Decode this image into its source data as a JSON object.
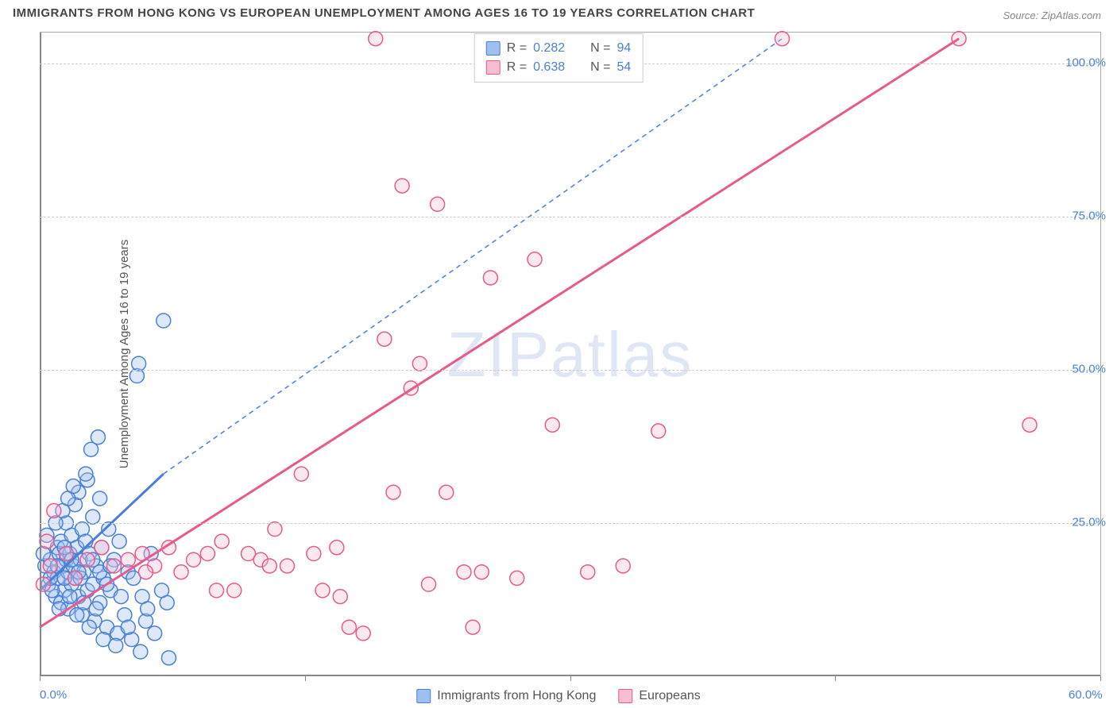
{
  "title": "IMMIGRANTS FROM HONG KONG VS EUROPEAN UNEMPLOYMENT AMONG AGES 16 TO 19 YEARS CORRELATION CHART",
  "source": "Source: ZipAtlas.com",
  "watermark": "ZIPatlas",
  "ylabel": "Unemployment Among Ages 16 to 19 years",
  "chart": {
    "type": "scatter",
    "xlim": [
      0,
      60
    ],
    "ylim": [
      0,
      105
    ],
    "xticks": [
      0,
      15,
      30,
      45,
      60
    ],
    "xtick_labels": [
      "0.0%",
      "",
      "",
      "",
      "60.0%"
    ],
    "yticks": [
      25,
      50,
      75,
      100
    ],
    "ytick_labels": [
      "25.0%",
      "50.0%",
      "75.0%",
      "100.0%"
    ],
    "background_color": "#ffffff",
    "grid_color": "#cccccc",
    "axis_color": "#888888",
    "label_color": "#4a7fd6",
    "title_fontsize": 15,
    "label_fontsize": 15,
    "watermark_fontsize": 80,
    "watermark_color": "rgba(130,160,210,0.25)",
    "marker_radius": 9,
    "marker_stroke_width": 1.5,
    "marker_fill_opacity": 0.35
  },
  "series": [
    {
      "name": "Immigrants from Hong Kong",
      "color_stroke": "#4a7fd6",
      "color_fill": "#9fbff0",
      "R": "0.282",
      "N": "94",
      "trend_solid": {
        "x1": 0,
        "y1": 14,
        "x2": 7,
        "y2": 33
      },
      "trend_dashed": {
        "x1": 7,
        "y1": 33,
        "x2": 42,
        "y2": 104
      },
      "points": [
        [
          0.3,
          18
        ],
        [
          0.5,
          15
        ],
        [
          0.6,
          19
        ],
        [
          0.8,
          17
        ],
        [
          0.9,
          13
        ],
        [
          1.0,
          21
        ],
        [
          1.0,
          16
        ],
        [
          1.1,
          20
        ],
        [
          1.2,
          12
        ],
        [
          1.2,
          22
        ],
        [
          1.3,
          18
        ],
        [
          1.4,
          14
        ],
        [
          1.5,
          19
        ],
        [
          1.5,
          25
        ],
        [
          1.6,
          11
        ],
        [
          1.6,
          17
        ],
        [
          1.7,
          20
        ],
        [
          1.8,
          23
        ],
        [
          1.8,
          15
        ],
        [
          1.9,
          18
        ],
        [
          2.0,
          28
        ],
        [
          2.0,
          16
        ],
        [
          2.1,
          21
        ],
        [
          2.2,
          13
        ],
        [
          2.2,
          30
        ],
        [
          2.3,
          19
        ],
        [
          2.4,
          10
        ],
        [
          2.4,
          24
        ],
        [
          2.5,
          17
        ],
        [
          2.6,
          22
        ],
        [
          2.7,
          14
        ],
        [
          2.7,
          32
        ],
        [
          2.8,
          20
        ],
        [
          2.9,
          37
        ],
        [
          3.0,
          15
        ],
        [
          3.0,
          26
        ],
        [
          3.1,
          9
        ],
        [
          3.2,
          18
        ],
        [
          3.3,
          39
        ],
        [
          3.4,
          12
        ],
        [
          3.4,
          29
        ],
        [
          3.5,
          21
        ],
        [
          3.6,
          16
        ],
        [
          3.8,
          8
        ],
        [
          3.9,
          24
        ],
        [
          4.0,
          14
        ],
        [
          4.2,
          19
        ],
        [
          4.4,
          7
        ],
        [
          4.5,
          22
        ],
        [
          4.8,
          10
        ],
        [
          5.0,
          17
        ],
        [
          5.2,
          6
        ],
        [
          5.5,
          49
        ],
        [
          5.6,
          51
        ],
        [
          5.8,
          13
        ],
        [
          6.0,
          9
        ],
        [
          6.3,
          20
        ],
        [
          7.0,
          58
        ],
        [
          7.2,
          12
        ],
        [
          0.4,
          23
        ],
        [
          0.7,
          14
        ],
        [
          0.9,
          25
        ],
        [
          1.1,
          11
        ],
        [
          1.3,
          27
        ],
        [
          1.4,
          16
        ],
        [
          1.6,
          29
        ],
        [
          1.7,
          13
        ],
        [
          1.9,
          31
        ],
        [
          2.1,
          10
        ],
        [
          2.3,
          16
        ],
        [
          2.5,
          12
        ],
        [
          2.6,
          33
        ],
        [
          2.8,
          8
        ],
        [
          3.0,
          19
        ],
        [
          3.2,
          11
        ],
        [
          3.4,
          17
        ],
        [
          3.6,
          6
        ],
        [
          3.8,
          15
        ],
        [
          4.0,
          18
        ],
        [
          4.3,
          5
        ],
        [
          4.6,
          13
        ],
        [
          5.0,
          8
        ],
        [
          5.3,
          16
        ],
        [
          5.7,
          4
        ],
        [
          6.1,
          11
        ],
        [
          6.5,
          7
        ],
        [
          6.9,
          14
        ],
        [
          7.3,
          3
        ],
        [
          0.2,
          20
        ],
        [
          0.6,
          16
        ],
        [
          1.0,
          18
        ],
        [
          1.4,
          21
        ],
        [
          1.8,
          19
        ],
        [
          2.2,
          17
        ]
      ]
    },
    {
      "name": "Europeans",
      "color_stroke": "#e75a8d",
      "color_fill": "#f7bdd2",
      "R": "0.638",
      "N": "54",
      "trend_solid": {
        "x1": 0,
        "y1": 8,
        "x2": 52,
        "y2": 104
      },
      "trend_dashed": null,
      "points": [
        [
          0.2,
          15
        ],
        [
          0.4,
          22
        ],
        [
          0.6,
          18
        ],
        [
          0.8,
          27
        ],
        [
          1.5,
          20
        ],
        [
          2.0,
          16
        ],
        [
          2.7,
          19
        ],
        [
          3.5,
          21
        ],
        [
          4.2,
          18
        ],
        [
          5.0,
          19
        ],
        [
          5.8,
          20
        ],
        [
          6.5,
          18
        ],
        [
          7.3,
          21
        ],
        [
          8.0,
          17
        ],
        [
          8.7,
          19
        ],
        [
          9.5,
          20
        ],
        [
          10.3,
          22
        ],
        [
          11.0,
          14
        ],
        [
          11.8,
          20
        ],
        [
          12.5,
          19
        ],
        [
          13.3,
          24
        ],
        [
          14.0,
          18
        ],
        [
          14.8,
          33
        ],
        [
          15.5,
          20
        ],
        [
          16.0,
          14
        ],
        [
          16.8,
          21
        ],
        [
          17.5,
          8
        ],
        [
          18.3,
          7
        ],
        [
          19.0,
          104
        ],
        [
          19.5,
          55
        ],
        [
          20.0,
          30
        ],
        [
          20.5,
          80
        ],
        [
          21.0,
          47
        ],
        [
          21.5,
          51
        ],
        [
          22.0,
          15
        ],
        [
          22.5,
          77
        ],
        [
          23.0,
          30
        ],
        [
          24.0,
          17
        ],
        [
          24.5,
          8
        ],
        [
          25.0,
          17
        ],
        [
          25.5,
          65
        ],
        [
          27.0,
          16
        ],
        [
          28.0,
          68
        ],
        [
          29.0,
          41
        ],
        [
          31.0,
          17
        ],
        [
          33.0,
          18
        ],
        [
          35.0,
          40
        ],
        [
          42.0,
          104
        ],
        [
          52.0,
          104
        ],
        [
          56.0,
          41
        ],
        [
          10.0,
          14
        ],
        [
          13.0,
          18
        ],
        [
          17.0,
          13
        ],
        [
          6.0,
          17
        ]
      ]
    }
  ],
  "legend_top": {
    "R_label": "R =",
    "N_label": "N ="
  },
  "legend_bottom": {
    "items": [
      "Immigrants from Hong Kong",
      "Europeans"
    ]
  }
}
